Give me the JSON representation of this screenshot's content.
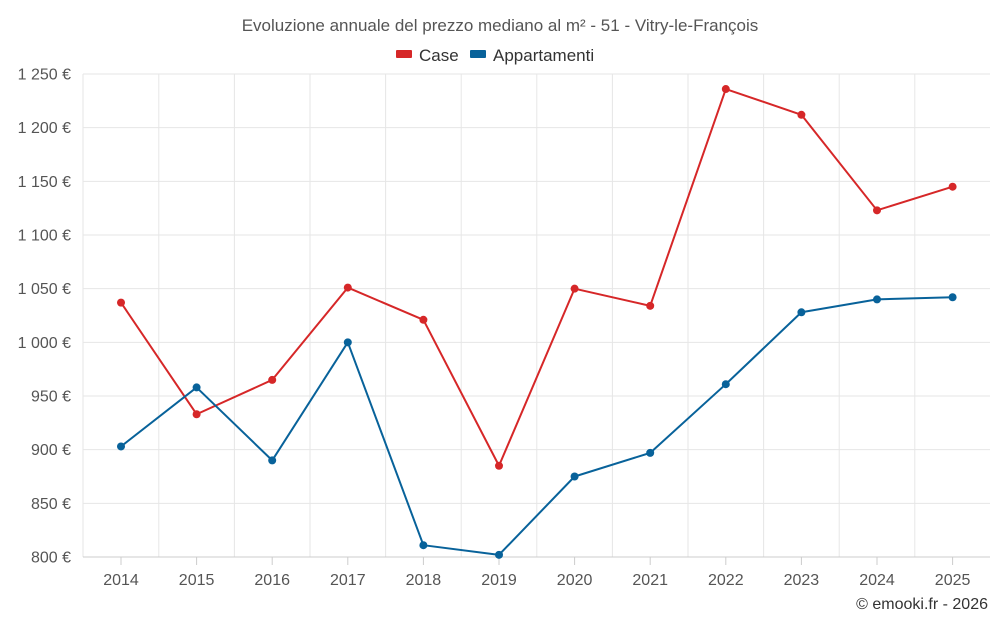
{
  "chart_data": {
    "type": "line",
    "title": "Evoluzione annuale del prezzo mediano al m² - 51 - Vitry-le-François",
    "categories": [
      "2014",
      "2015",
      "2016",
      "2017",
      "2018",
      "2019",
      "2020",
      "2021",
      "2022",
      "2023",
      "2024",
      "2025"
    ],
    "series": [
      {
        "name": "Case",
        "color": "#d62728",
        "values": [
          1037,
          933,
          965,
          1051,
          1021,
          885,
          1050,
          1034,
          1236,
          1212,
          1123,
          1145
        ]
      },
      {
        "name": "Appartamenti",
        "color": "#08629a",
        "values": [
          903,
          958,
          890,
          1000,
          811,
          802,
          875,
          897,
          961,
          1028,
          1040,
          1042
        ]
      }
    ],
    "ylim": [
      800,
      1250
    ],
    "yticks": [
      800,
      850,
      900,
      950,
      1000,
      1050,
      1100,
      1150,
      1200,
      1250
    ],
    "ytick_labels": [
      "800 €",
      "850 €",
      "900 €",
      "950 €",
      "1 000 €",
      "1 050 €",
      "1 100 €",
      "1 150 €",
      "1 200 €",
      "1 250 €"
    ],
    "grid": true,
    "legend_position": "top-center"
  },
  "credit": "© emooki.fr - 2026"
}
